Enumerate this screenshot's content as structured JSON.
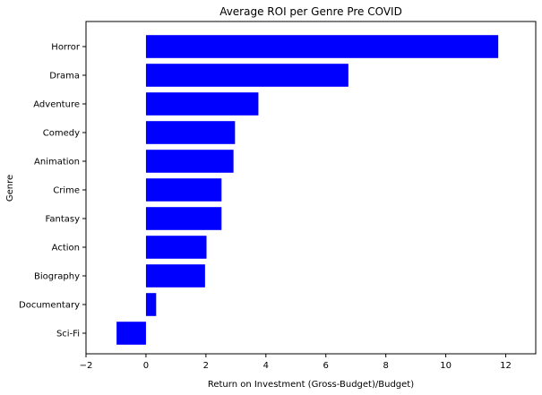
{
  "chart_data": {
    "type": "bar",
    "orientation": "horizontal",
    "title": "Average ROI per Genre Pre COVID",
    "xlabel": "Return on Investment (Gross-Budget)/Budget)",
    "ylabel": "Genre",
    "categories": [
      "Horror",
      "Drama",
      "Adventure",
      "Comedy",
      "Animation",
      "Crime",
      "Fantasy",
      "Action",
      "Biography",
      "Documentary",
      "Sci-Fi"
    ],
    "values": [
      11.75,
      6.75,
      3.75,
      2.97,
      2.92,
      2.52,
      2.52,
      2.02,
      1.97,
      0.34,
      -0.98
    ],
    "xlim": [
      -2,
      13
    ],
    "xticks": [
      -2,
      0,
      2,
      4,
      6,
      8,
      10,
      12
    ],
    "bar_color": "#0000ff",
    "grid": false,
    "legend": "none"
  }
}
